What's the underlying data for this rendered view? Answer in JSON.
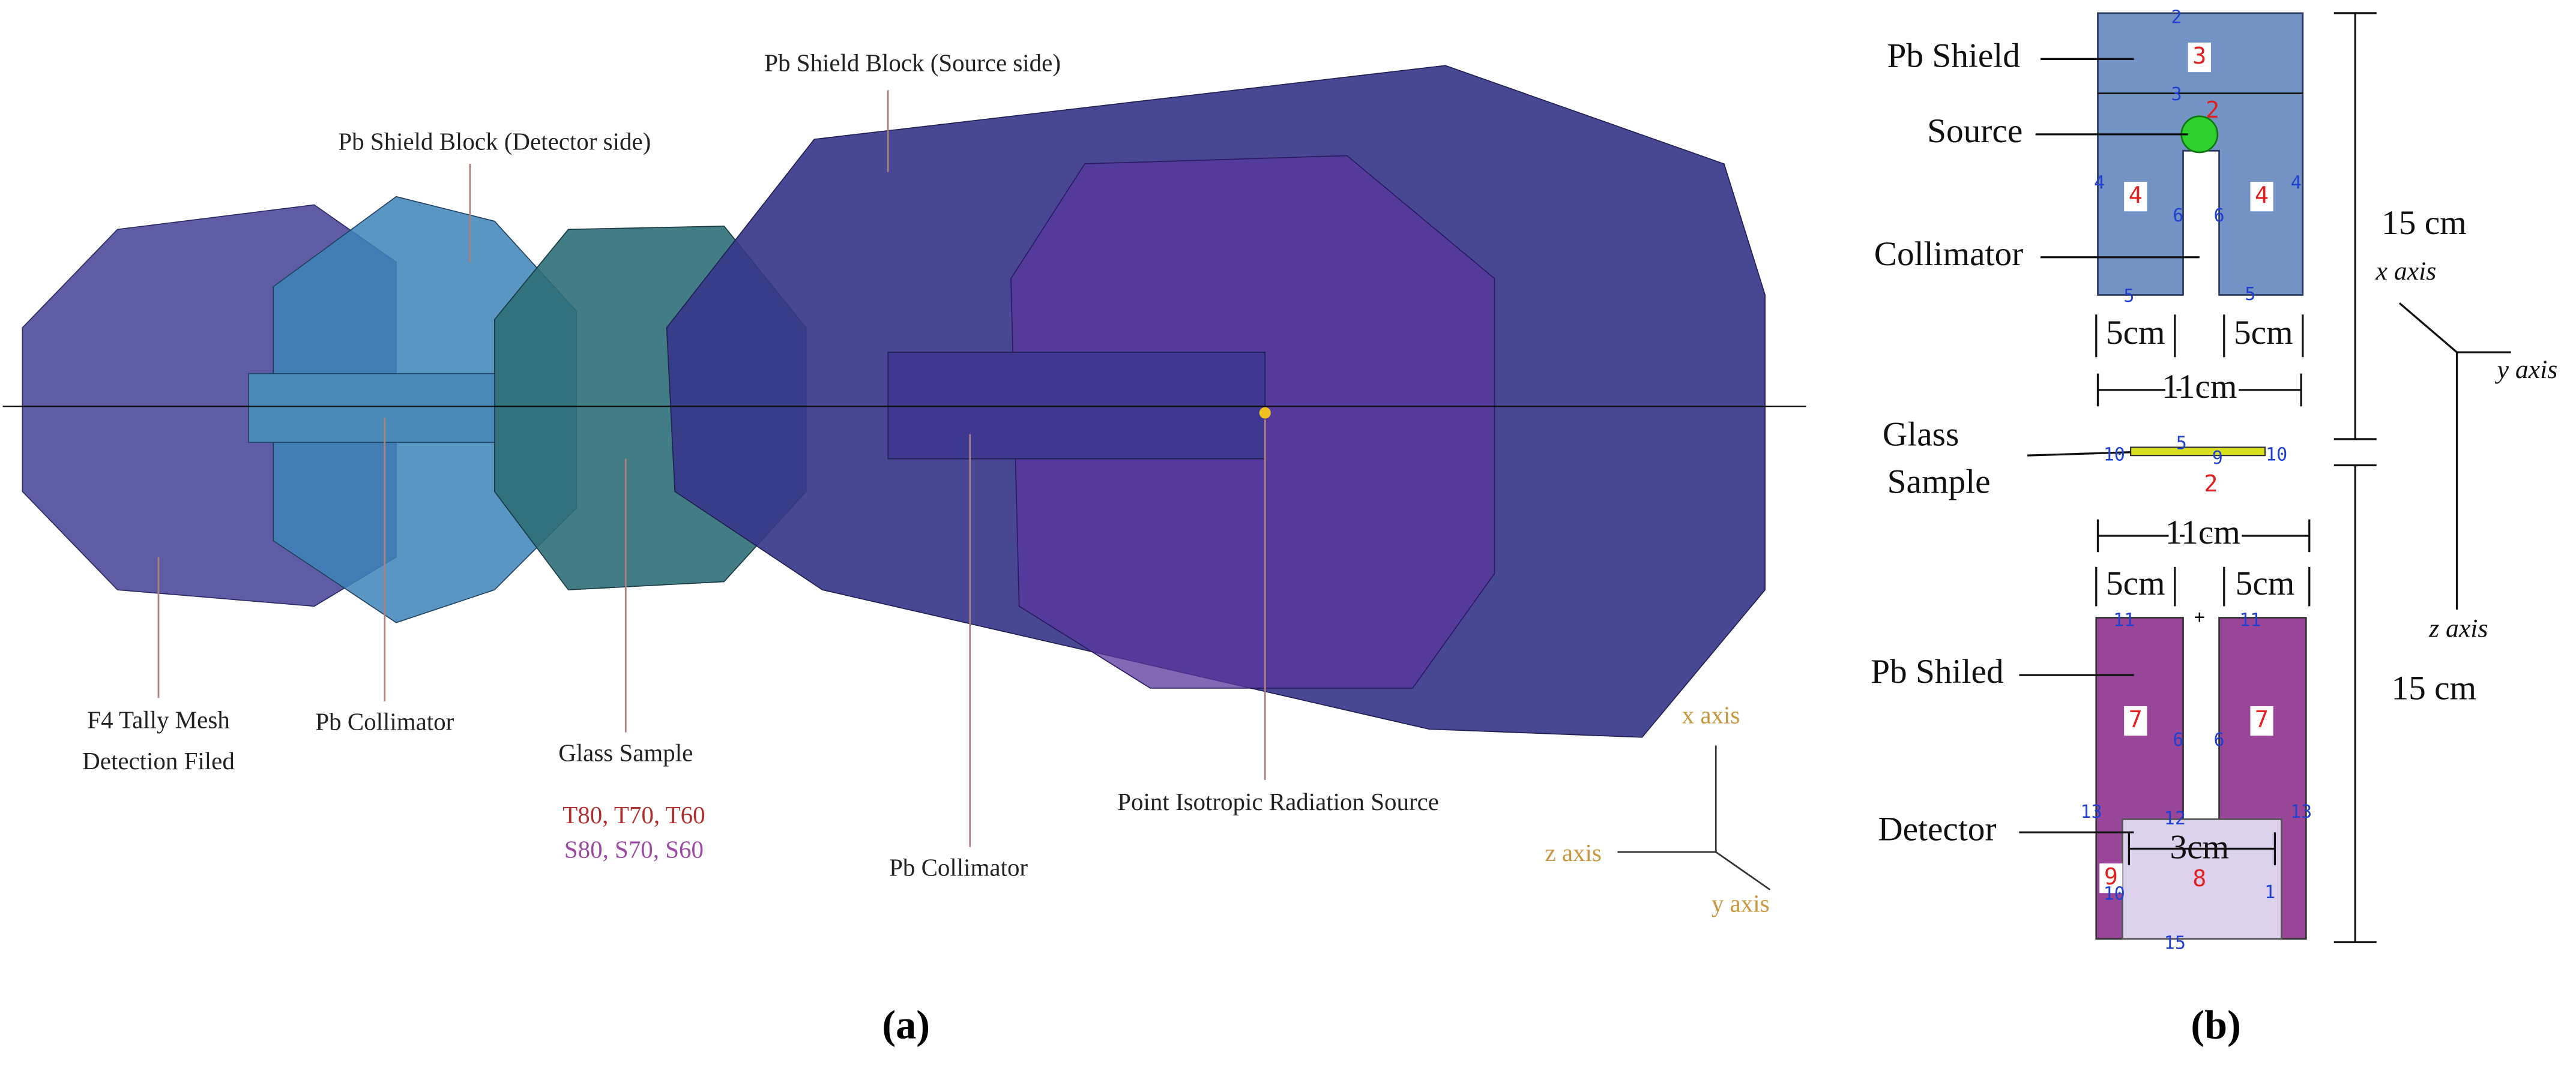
{
  "panel_a": {
    "labels": {
      "source_block": "Pb Shield Block (Source side)",
      "detector_block": "Pb Shield Block (Detector side)",
      "tally_line1": "F4 Tally Mesh",
      "tally_line2": "Detection Filed",
      "collimator_left": "Pb Collimator",
      "glass": "Glass Sample",
      "samples_t": "T80, T70, T60",
      "samples_s": "S80, S70, S60",
      "collimator_right": "Pb Collimator",
      "source": "Point Isotropic Radiation Source"
    },
    "axes": {
      "x": "x axis",
      "y": "y axis",
      "z": "z axis"
    },
    "caption": "(a)"
  },
  "panel_b": {
    "labels": {
      "shield_top": "Pb Shield",
      "source": "Source",
      "collimator": "Collimator",
      "glass_line1": "Glass",
      "glass_line2": "Sample",
      "shield_bottom": "Pb Shiled",
      "detector": "Detector"
    },
    "dimensions": {
      "top_left": "5cm",
      "top_right": "5cm",
      "top_width": "11cm",
      "bottom_width": "11cm",
      "bottom_left": "5cm",
      "bottom_right": "5cm",
      "detector_width": "3cm",
      "upper_height": "15 cm",
      "lower_height": "15 cm"
    },
    "axes": {
      "x": "x axis",
      "y": "y axis",
      "z": "z axis"
    },
    "cell_numbers": [
      "2",
      "3",
      "3",
      "2",
      "4",
      "4",
      "6",
      "6",
      "4",
      "4",
      "5",
      "5",
      "10",
      "5",
      "9",
      "10",
      "2",
      "+",
      "11",
      "11",
      "7",
      "6",
      "6",
      "7",
      "13",
      "12",
      "13",
      "9",
      "10",
      "8",
      "1",
      "15"
    ],
    "caption": "(b)"
  }
}
